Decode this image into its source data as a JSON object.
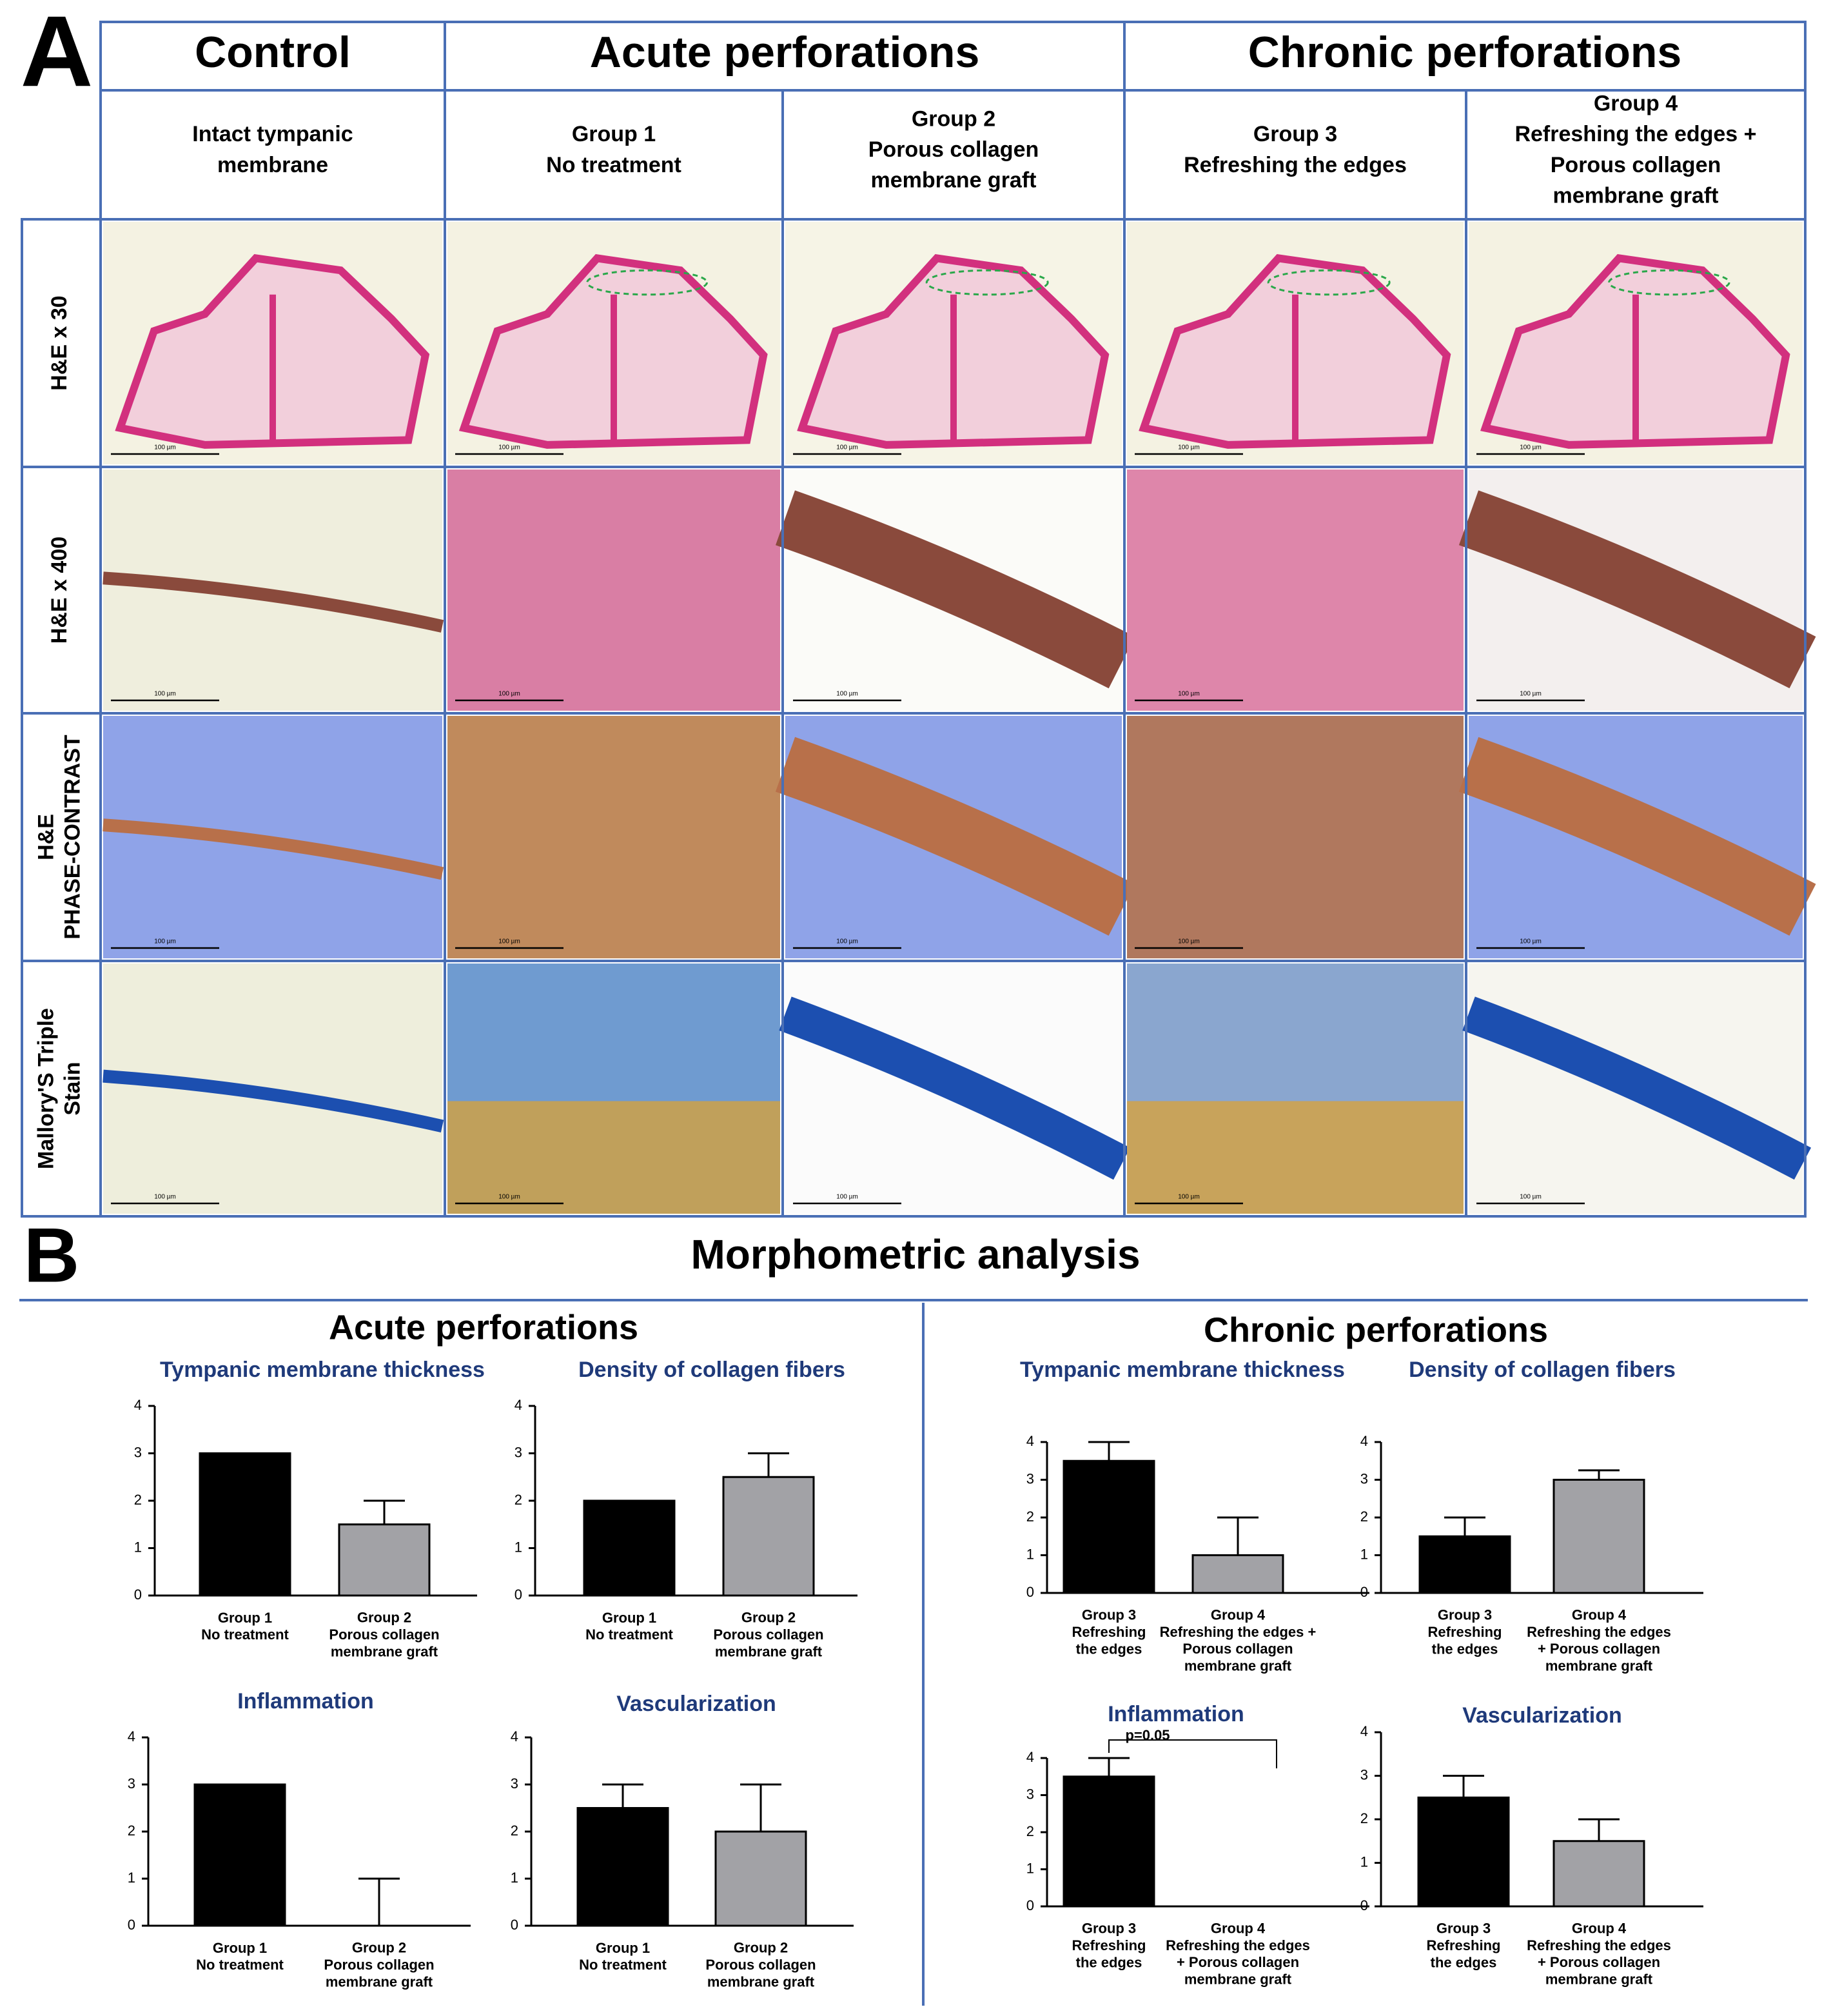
{
  "panel_a": {
    "label": "A",
    "groups": [
      "Control",
      "Acute perforations",
      "Chronic perforations"
    ],
    "subgroups": [
      "Intact tympanic\nmembrane",
      "Group 1\nNo treatment",
      "Group 2\nPorous collagen\nmembrane graft",
      "Group 3\nRefreshing the edges",
      "Group 4\nRefreshing the edges +\nPorous collagen\nmembrane graft"
    ],
    "rows": [
      "H&E x 30",
      "H&E x 400",
      "H&E\nPHASE-CONTRAST",
      "Mallory'S Triple\nStain"
    ],
    "scale_bar": "100 µm"
  },
  "panel_b": {
    "label": "B",
    "title": "Morphometric analysis",
    "sections": [
      "Acute perforations",
      "Chronic perforations"
    ]
  },
  "chart_data": [
    {
      "type": "bar",
      "title": "Tympanic membrane thickness",
      "categories": [
        "Group 1\nNo treatment",
        "Group 2\nPorous collagen\nmembrane graft"
      ],
      "values": [
        3,
        1.5
      ],
      "errors": [
        0,
        0.5
      ],
      "colors": [
        "#000000",
        "#a2a2a6"
      ],
      "ylim": [
        0,
        4
      ],
      "yticks": [
        0,
        1,
        2,
        3,
        4
      ]
    },
    {
      "type": "bar",
      "title": "Density of collagen fibers",
      "categories": [
        "Group 1\nNo treatment",
        "Group 2\nPorous collagen\nmembrane graft"
      ],
      "values": [
        2,
        2.5
      ],
      "errors": [
        0,
        0.5
      ],
      "colors": [
        "#000000",
        "#a2a2a6"
      ],
      "ylim": [
        0,
        4
      ],
      "yticks": [
        0,
        1,
        2,
        3,
        4
      ]
    },
    {
      "type": "bar",
      "title": "Inflammation",
      "categories": [
        "Group 1\nNo treatment",
        "Group 2\nPorous collagen\nmembrane graft"
      ],
      "values": [
        3,
        0
      ],
      "errors": [
        0,
        1
      ],
      "colors": [
        "#000000",
        "#a2a2a6"
      ],
      "ylim": [
        0,
        4
      ],
      "yticks": [
        0,
        1,
        2,
        3,
        4
      ]
    },
    {
      "type": "bar",
      "title": "Vascularization",
      "categories": [
        "Group 1\nNo treatment",
        "Group 2\nPorous collagen\nmembrane graft"
      ],
      "values": [
        2.5,
        2
      ],
      "errors": [
        0.5,
        1
      ],
      "colors": [
        "#000000",
        "#a2a2a6"
      ],
      "ylim": [
        0,
        4
      ],
      "yticks": [
        0,
        1,
        2,
        3,
        4
      ]
    },
    {
      "type": "bar",
      "title": "Tympanic membrane thickness",
      "categories": [
        "Group 3\nRefreshing\nthe edges",
        "Group 4\nRefreshing the edges +\nPorous collagen\nmembrane graft"
      ],
      "values": [
        3.5,
        1
      ],
      "errors": [
        0.5,
        1
      ],
      "colors": [
        "#000000",
        "#a2a2a6"
      ],
      "ylim": [
        0,
        4
      ],
      "yticks": [
        0,
        1,
        2,
        3,
        4
      ]
    },
    {
      "type": "bar",
      "title": "Density of collagen fibers",
      "categories": [
        "Group 3\nRefreshing\nthe edges",
        "Group 4\nRefreshing the edges\n+ Porous collagen\nmembrane graft"
      ],
      "values": [
        1.5,
        3
      ],
      "errors": [
        0.5,
        0.25
      ],
      "colors": [
        "#000000",
        "#a2a2a6"
      ],
      "ylim": [
        0,
        4
      ],
      "yticks": [
        0,
        1,
        2,
        3,
        4
      ]
    },
    {
      "type": "bar",
      "title": "Inflammation",
      "categories": [
        "Group 3\nRefreshing\nthe edges",
        "Group 4\nRefreshing the edges\n+ Porous collagen\nmembrane graft"
      ],
      "values": [
        3.5,
        0
      ],
      "errors": [
        0.5,
        0
      ],
      "colors": [
        "#000000",
        "#a2a2a6"
      ],
      "ylim": [
        0,
        4
      ],
      "yticks": [
        0,
        1,
        2,
        3,
        4
      ],
      "annotation": "p=0.05"
    },
    {
      "type": "bar",
      "title": "Vascularization",
      "categories": [
        "Group 3\nRefreshing\nthe edges",
        "Group 4\nRefreshing the edges\n+ Porous collagen\nmembrane graft"
      ],
      "values": [
        2.5,
        1.5
      ],
      "errors": [
        0.5,
        0.5
      ],
      "colors": [
        "#000000",
        "#a2a2a6"
      ],
      "ylim": [
        0,
        4
      ],
      "yticks": [
        0,
        1,
        2,
        3,
        4
      ]
    }
  ]
}
